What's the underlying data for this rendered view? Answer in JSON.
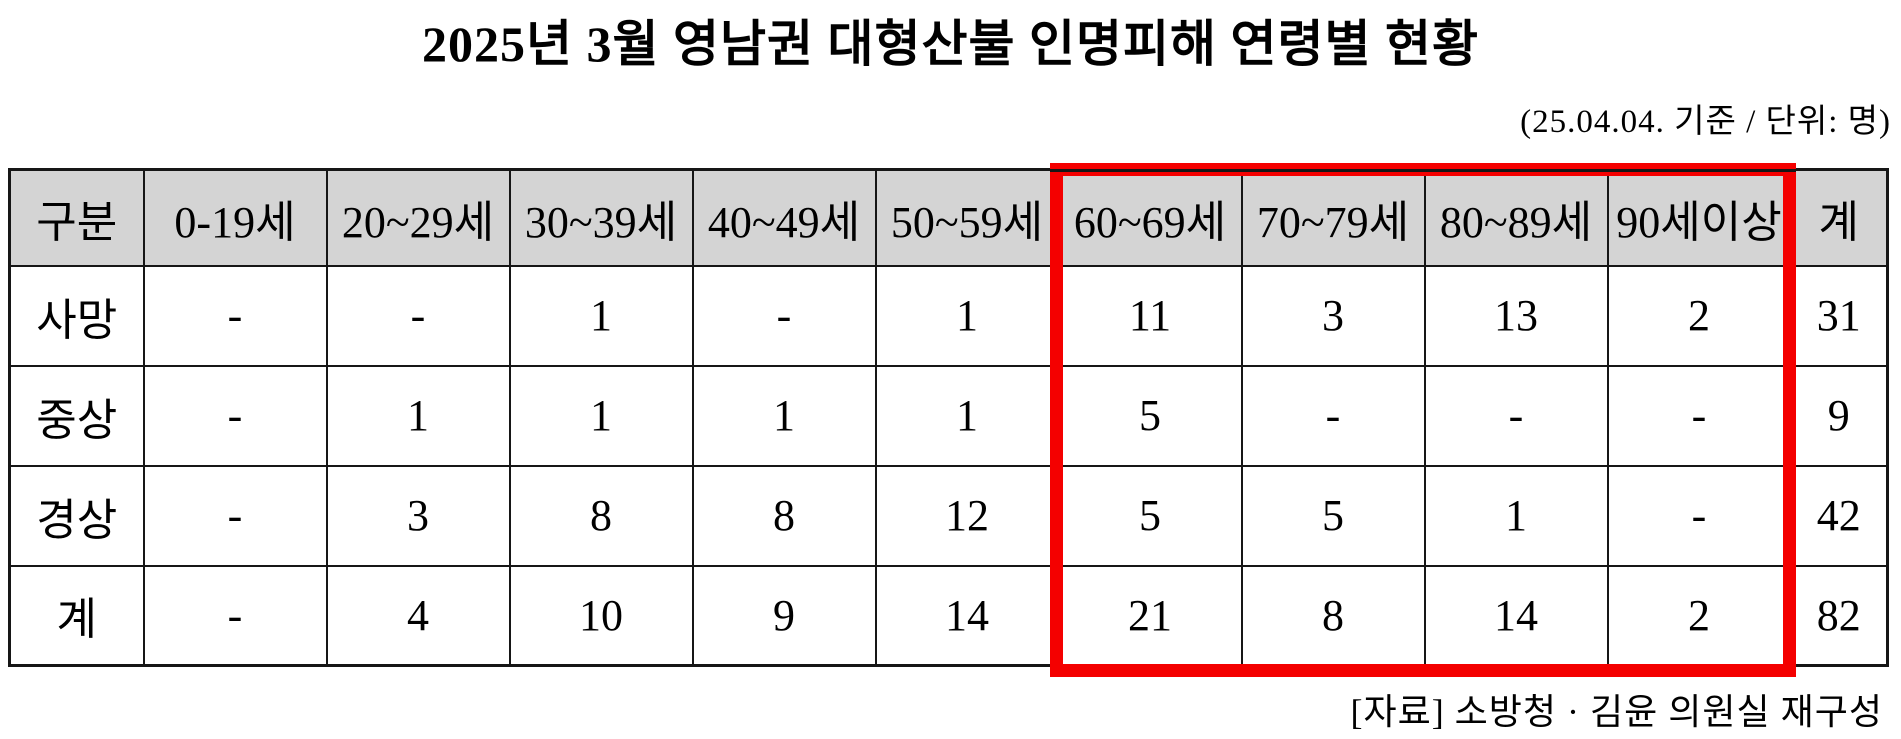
{
  "page": {
    "title": "2025년 3월 영남권 대형산불 인명피해 연령별 현황",
    "subtitle": "(25.04.04. 기준 / 단위: 명)",
    "source_note": "[자료] 소방청 · 김윤 의원실 재구성"
  },
  "colors": {
    "header_bg": "#d4d4d4",
    "table_border": "#161616",
    "highlight_box": "#f40000",
    "text": "#000000",
    "background": "#ffffff"
  },
  "chart_data": {
    "type": "table",
    "title": "2025년 3월 영남권 대형산불 인명피해 연령별 현황",
    "as_of": "25.04.04. 기준",
    "unit": "명",
    "columns": [
      "구분",
      "0-19세",
      "20~29세",
      "30~39세",
      "40~49세",
      "50~59세",
      "60~69세",
      "70~79세",
      "80~89세",
      "90세이상",
      "계"
    ],
    "rows": [
      {
        "label": "사망",
        "values": [
          "-",
          "-",
          "1",
          "-",
          "1",
          "11",
          "3",
          "13",
          "2",
          "31"
        ]
      },
      {
        "label": "중상",
        "values": [
          "-",
          "1",
          "1",
          "1",
          "1",
          "5",
          "-",
          "-",
          "-",
          "9"
        ]
      },
      {
        "label": "경상",
        "values": [
          "-",
          "3",
          "8",
          "8",
          "12",
          "5",
          "5",
          "1",
          "-",
          "42"
        ]
      },
      {
        "label": "계",
        "values": [
          "-",
          "4",
          "10",
          "9",
          "14",
          "21",
          "8",
          "14",
          "2",
          "82"
        ]
      }
    ],
    "highlighted_columns": [
      "60~69세",
      "70~79세",
      "80~89세",
      "90세이상"
    ],
    "highlight_style": "red box outline",
    "source": "[자료] 소방청 · 김윤 의원실 재구성"
  }
}
